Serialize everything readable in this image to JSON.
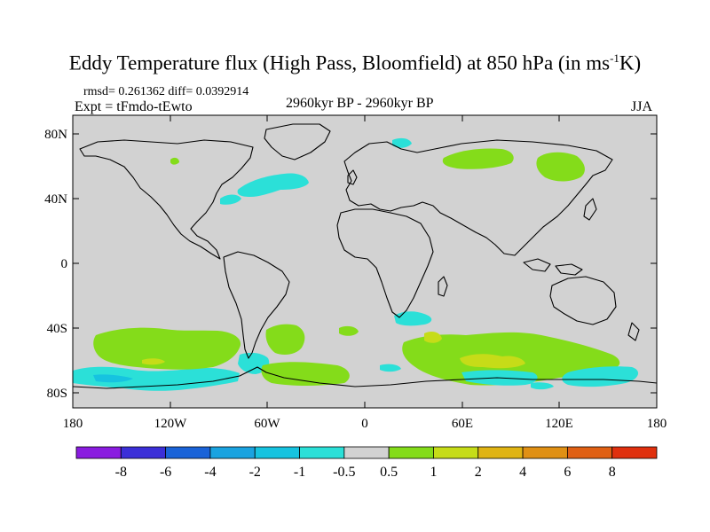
{
  "title": {
    "main": "Eddy Temperature flux (High Pass, Bloomfield) at 850 hPa (in ms",
    "sup": "-1",
    "tail": "K)"
  },
  "stats": "rmsd= 0.261362 diff= 0.0392914",
  "experiment": "Expt = tFmdo-tEwto",
  "period": "2960kyr BP - 2960kyr BP",
  "season": "JJA",
  "axes": {
    "lat_labels": [
      "80N",
      "40N",
      "0",
      "40S",
      "80S"
    ],
    "lon_labels": [
      "180",
      "120W",
      "60W",
      "0",
      "60E",
      "120E",
      "180"
    ]
  },
  "colorbar": {
    "colors": [
      "#8a1ce0",
      "#3b2fd8",
      "#1a63d8",
      "#1aa3e0",
      "#16c3e0",
      "#2be0d8",
      "#d2d2d2",
      "#84dc1a",
      "#c6dc18",
      "#e0b414",
      "#e09014",
      "#e06014",
      "#e0300e"
    ],
    "labels": [
      "-8",
      "-6",
      "-4",
      "-2",
      "-1",
      "-0.5",
      "0.5",
      "1",
      "2",
      "4",
      "6",
      "8"
    ]
  },
  "colors": {
    "background": "#d2d2d2",
    "positive_1": "#84dc1a",
    "positive_2": "#c6dc18",
    "negative_1": "#2be0d8",
    "negative_2": "#16c3e0"
  }
}
